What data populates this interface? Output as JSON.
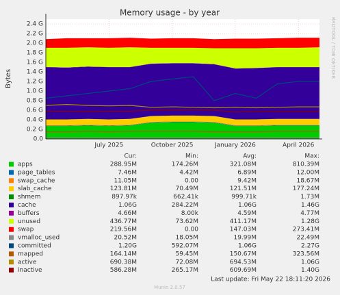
{
  "chart_data": {
    "type": "area",
    "title": "Memory usage - by year",
    "y_label": "Bytes",
    "side_text": "RRDTOOL / TOBI OETIKER",
    "x": [
      "2025-04",
      "2025-05",
      "2025-06",
      "2025-07",
      "2025-08",
      "2025-09",
      "2025-10",
      "2025-11",
      "2025-12",
      "2026-01",
      "2026-02",
      "2026-03",
      "2026-04",
      "2026-05"
    ],
    "xlim": [
      "2025-04",
      "2026-05"
    ],
    "xticks": [
      {
        "value": "2025-07",
        "label": "July 2025"
      },
      {
        "value": "2025-10",
        "label": "October 2025"
      },
      {
        "value": "2026-01",
        "label": "January 2026"
      },
      {
        "value": "2026-04",
        "label": "April 2026"
      }
    ],
    "ylim": [
      0,
      2.5
    ],
    "yticks": [
      {
        "value": 0,
        "label": "0.0"
      },
      {
        "value": 0.2,
        "label": "0.2 G"
      },
      {
        "value": 0.4,
        "label": "0.4 G"
      },
      {
        "value": 0.6,
        "label": "0.6 G"
      },
      {
        "value": 0.8,
        "label": "0.8 G"
      },
      {
        "value": 1.0,
        "label": "1.0 G"
      },
      {
        "value": 1.2,
        "label": "1.2 G"
      },
      {
        "value": 1.4,
        "label": "1.4 G"
      },
      {
        "value": 1.6,
        "label": "1.6 G"
      },
      {
        "value": 1.8,
        "label": "1.8 G"
      },
      {
        "value": 2.0,
        "label": "2.0 G"
      },
      {
        "value": 2.2,
        "label": "2.2 G"
      },
      {
        "value": 2.4,
        "label": "2.4 G"
      }
    ],
    "grid": true,
    "stat_headers": [
      "Cur:",
      "Min:",
      "Avg:",
      "Max:"
    ],
    "series": [
      {
        "name": "apps",
        "color": "#00cc00",
        "style": "area",
        "values": [
          0.27,
          0.27,
          0.28,
          0.27,
          0.28,
          0.34,
          0.35,
          0.35,
          0.34,
          0.27,
          0.27,
          0.28,
          0.28,
          0.28
        ],
        "stats": [
          "288.95M",
          "174.26M",
          "321.08M",
          "810.39M"
        ]
      },
      {
        "name": "page_tables",
        "color": "#0066b3",
        "style": "area",
        "values": [
          0.007,
          0.007,
          0.007,
          0.007,
          0.007,
          0.007,
          0.007,
          0.007,
          0.007,
          0.007,
          0.007,
          0.007,
          0.007,
          0.007
        ],
        "stats": [
          "7.46M",
          "4.42M",
          "6.89M",
          "12.00M"
        ]
      },
      {
        "name": "swap_cache",
        "color": "#ff8000",
        "style": "area",
        "values": [
          0.01,
          0.01,
          0.01,
          0.01,
          0.01,
          0.01,
          0.01,
          0.01,
          0.01,
          0.01,
          0.01,
          0.01,
          0.01,
          0.01
        ],
        "stats": [
          "11.05M",
          "0.00",
          "9.42M",
          "18.67M"
        ]
      },
      {
        "name": "slab_cache",
        "color": "#ffcc00",
        "style": "area",
        "values": [
          0.12,
          0.12,
          0.12,
          0.12,
          0.12,
          0.12,
          0.12,
          0.12,
          0.12,
          0.12,
          0.12,
          0.12,
          0.12,
          0.12
        ],
        "stats": [
          "123.81M",
          "70.49M",
          "121.51M",
          "177.24M"
        ]
      },
      {
        "name": "shmem",
        "color": "#008f00",
        "style": "area",
        "values": [
          0.001,
          0.001,
          0.001,
          0.001,
          0.001,
          0.001,
          0.001,
          0.001,
          0.001,
          0.001,
          0.001,
          0.001,
          0.001,
          0.001
        ],
        "stats": [
          "897.97k",
          "662.41k",
          "999.71k",
          "1.73M"
        ]
      },
      {
        "name": "cache",
        "color": "#330099",
        "style": "area",
        "values": [
          1.09,
          1.08,
          1.09,
          1.09,
          1.08,
          1.09,
          1.09,
          1.09,
          1.08,
          1.06,
          1.07,
          1.08,
          1.08,
          1.08
        ],
        "stats": [
          "1.06G",
          "284.22M",
          "1.06G",
          "1.46G"
        ]
      },
      {
        "name": "buffers",
        "color": "#990099",
        "style": "area",
        "values": [
          0.0045,
          0.0045,
          0.0045,
          0.0045,
          0.0045,
          0.0045,
          0.0045,
          0.0045,
          0.0045,
          0.0045,
          0.0045,
          0.0045,
          0.0045,
          0.0045
        ],
        "stats": [
          "4.66M",
          "8.00k",
          "4.59M",
          "4.77M"
        ]
      },
      {
        "name": "unused",
        "color": "#ccff00",
        "style": "area",
        "values": [
          0.4,
          0.41,
          0.4,
          0.4,
          0.41,
          0.33,
          0.32,
          0.32,
          0.33,
          0.42,
          0.41,
          0.4,
          0.4,
          0.41
        ],
        "stats": [
          "436.77M",
          "73.62M",
          "411.17M",
          "1.28G"
        ]
      },
      {
        "name": "swap",
        "color": "#ff0000",
        "style": "area",
        "values": [
          0.18,
          0.2,
          0.19,
          0.2,
          0.2,
          0.19,
          0.2,
          0.2,
          0.19,
          0.2,
          0.2,
          0.2,
          0.21,
          0.2
        ],
        "stats": [
          "219.56M",
          "0.00",
          "147.03M",
          "273.41M"
        ]
      },
      {
        "name": "vmalloc_used",
        "color": "#888888",
        "style": "line",
        "values": [
          0.02,
          0.02,
          0.02,
          0.02,
          0.02,
          0.02,
          0.02,
          0.02,
          0.02,
          0.02,
          0.02,
          0.02,
          0.02,
          0.02
        ],
        "stats": [
          "20.52M",
          "18.05M",
          "19.99M",
          "22.49M"
        ]
      },
      {
        "name": "committed",
        "color": "#00487d",
        "style": "line",
        "values": [
          0.85,
          0.9,
          0.95,
          1.0,
          1.05,
          1.2,
          1.25,
          1.3,
          0.8,
          0.95,
          0.85,
          1.15,
          1.2,
          1.2
        ],
        "stats": [
          "1.20G",
          "592.07M",
          "1.06G",
          "2.27G"
        ]
      },
      {
        "name": "mapped",
        "color": "#b35a00",
        "style": "line",
        "values": [
          0.15,
          0.15,
          0.16,
          0.15,
          0.16,
          0.16,
          0.16,
          0.16,
          0.15,
          0.15,
          0.15,
          0.16,
          0.16,
          0.16
        ],
        "stats": [
          "164.14M",
          "59.45M",
          "150.67M",
          "323.56M"
        ]
      },
      {
        "name": "active",
        "color": "#b38f00",
        "style": "line",
        "values": [
          0.7,
          0.72,
          0.7,
          0.69,
          0.7,
          0.66,
          0.67,
          0.66,
          0.65,
          0.66,
          0.65,
          0.66,
          0.67,
          0.67
        ],
        "stats": [
          "690.38M",
          "72.08M",
          "694.53M",
          "1.06G"
        ]
      },
      {
        "name": "inactive",
        "color": "#8f0000",
        "style": "line",
        "values": [
          0.58,
          0.58,
          0.57,
          0.58,
          0.58,
          0.6,
          0.6,
          0.61,
          0.6,
          0.56,
          0.57,
          0.57,
          0.57,
          0.57
        ],
        "stats": [
          "586.28M",
          "265.17M",
          "609.69M",
          "1.40G"
        ]
      }
    ],
    "footer": "Last update: Fri May 22 18:11:20 2026",
    "version": "Munin 2.0.57"
  }
}
